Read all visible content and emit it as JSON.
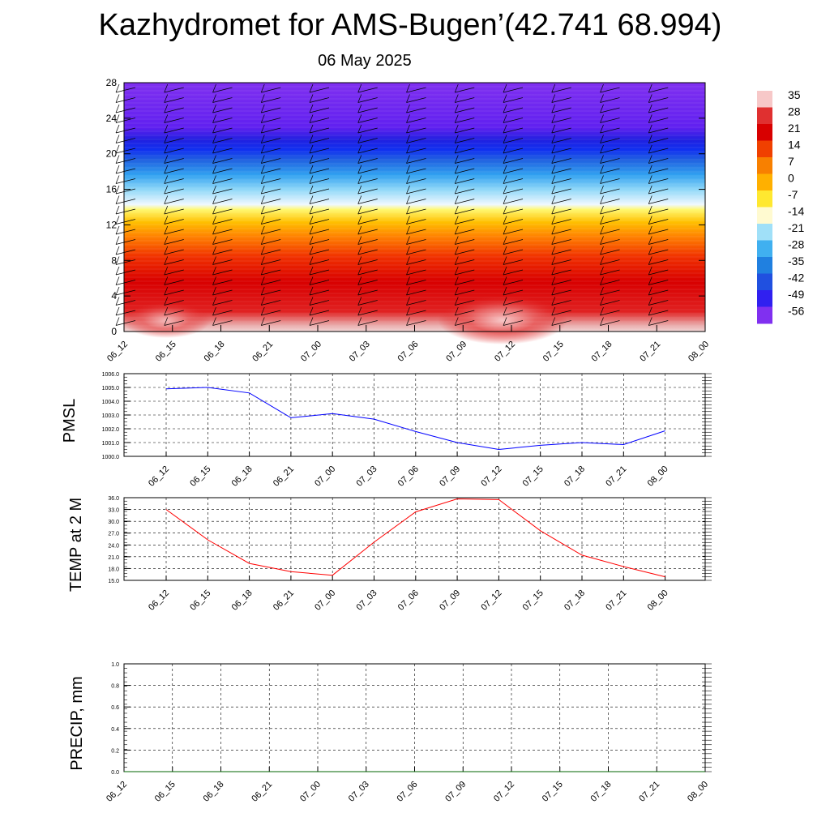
{
  "title": "Kazhydromet for AMS-Bugen’(42.741 68.994)",
  "subtitle": "06 May 2025",
  "colors": {
    "pmsl_line": "#0000ff",
    "temp_line": "#ff0000",
    "precip_line": "#006400",
    "grid": "#000000"
  },
  "chart_data": [
    {
      "type": "heatmap",
      "title": "",
      "x_ticks": [
        "06_12",
        "06_15",
        "06_18",
        "06_21",
        "07_00",
        "07_03",
        "07_06",
        "07_09",
        "07_12",
        "07_15",
        "07_18",
        "07_21",
        "08_00"
      ],
      "y_ticks": [
        "0",
        "4",
        "8",
        "12",
        "16",
        "20",
        "24",
        "28"
      ],
      "ylim": [
        0,
        28
      ],
      "colorbar": {
        "labels": [
          "35",
          "28",
          "21",
          "14",
          "7",
          "0",
          "-7",
          "-14",
          "-21",
          "-28",
          "-35",
          "-42",
          "-49",
          "-56"
        ],
        "colors": [
          "#f7c8c8",
          "#e03030",
          "#d80000",
          "#f04000",
          "#f88000",
          "#ffb000",
          "#ffe830",
          "#fffad0",
          "#a0e0f8",
          "#40b0f0",
          "#2080e0",
          "#2050e0",
          "#3020f0",
          "#8030f0"
        ]
      },
      "wind_barbs": true
    },
    {
      "type": "line",
      "ylabel": "PMSL",
      "x": [
        "06_12",
        "06_15",
        "06_18",
        "06_21",
        "07_00",
        "07_03",
        "07_06",
        "07_09",
        "07_12",
        "07_15",
        "07_18",
        "07_21",
        "08_00"
      ],
      "y_ticks": [
        "1000.0",
        "1001.0",
        "1002.0",
        "1003.0",
        "1004.0",
        "1005.0",
        "1006.0"
      ],
      "ylim": [
        1000,
        1006
      ],
      "series": [
        {
          "values": [
            1004.9,
            1005.0,
            1004.6,
            1002.8,
            1003.1,
            1002.7,
            1001.8,
            1001.0,
            1000.5,
            1000.8,
            1001.0,
            1000.85,
            1001.85
          ]
        }
      ]
    },
    {
      "type": "line",
      "ylabel": "TEMP at 2 M",
      "x": [
        "06_12",
        "06_15",
        "06_18",
        "06_21",
        "07_00",
        "07_03",
        "07_06",
        "07_09",
        "07_12",
        "07_15",
        "07_18",
        "07_21",
        "08_00"
      ],
      "y_ticks": [
        "15.0",
        "18.0",
        "21.0",
        "24.0",
        "27.0",
        "30.0",
        "33.0",
        "36.0"
      ],
      "ylim": [
        15,
        36
      ],
      "series": [
        {
          "values": [
            33.0,
            25.3,
            19.3,
            17.2,
            16.3,
            24.7,
            32.4,
            35.7,
            35.5,
            27.6,
            21.4,
            18.5,
            15.9
          ]
        }
      ]
    },
    {
      "type": "line",
      "ylabel": "PRECIP, mm",
      "x": [
        "06_12",
        "06_15",
        "06_18",
        "06_21",
        "07_00",
        "07_03",
        "07_06",
        "07_09",
        "07_12",
        "07_15",
        "07_18",
        "07_21",
        "08_00"
      ],
      "y_ticks": [
        "0.0",
        "0.2",
        "0.4",
        "0.6",
        "0.8",
        "1.0"
      ],
      "ylim": [
        0,
        1
      ],
      "series": [
        {
          "values": [
            0,
            0,
            0,
            0,
            0,
            0,
            0,
            0,
            0,
            0,
            0,
            0,
            0
          ]
        }
      ]
    }
  ]
}
